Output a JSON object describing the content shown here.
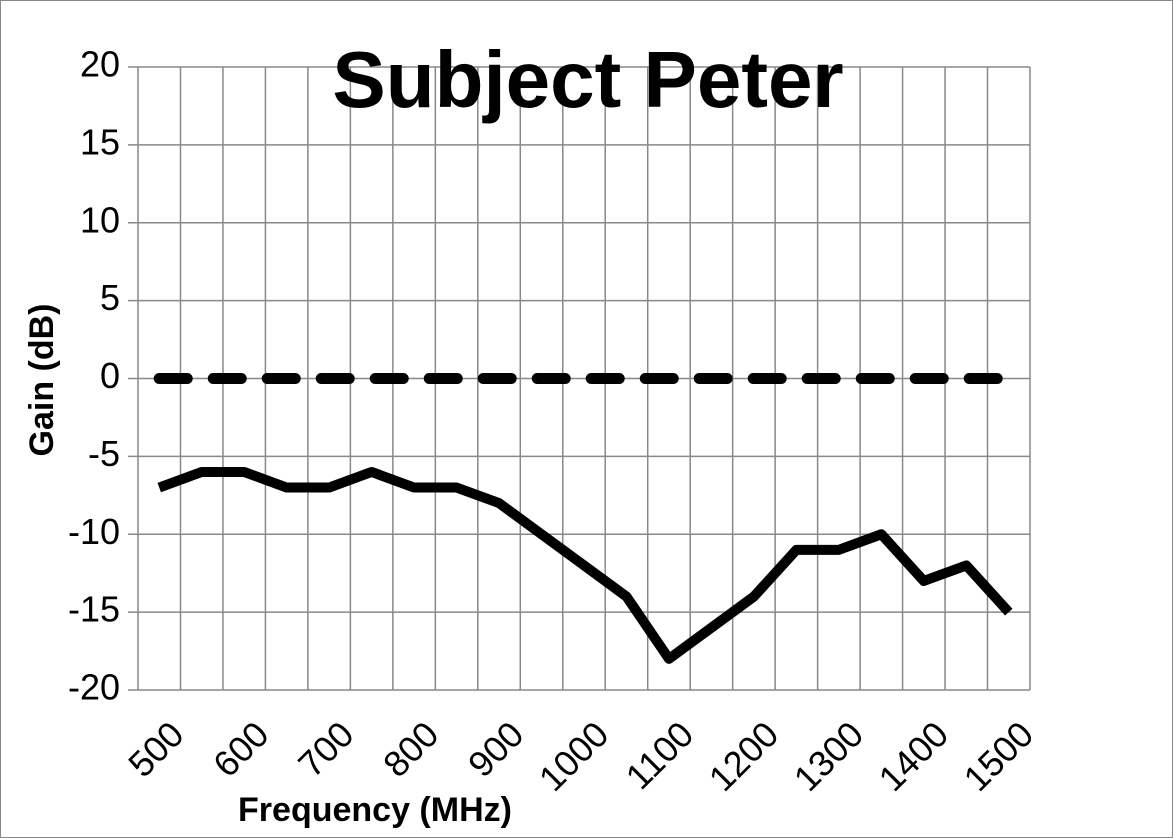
{
  "chart_data": {
    "type": "line",
    "title": "Subject Peter",
    "x_label": "Frequency (MHz)",
    "y_label": "Gain (dB)",
    "categories": [
      "500",
      null,
      "600",
      null,
      "700",
      null,
      "800",
      null,
      "900",
      null,
      "1000",
      null,
      "1100",
      null,
      "1200",
      null,
      "1300",
      null,
      "1400",
      null,
      "1500"
    ],
    "series": [
      {
        "color": "#000000",
        "dashed": false,
        "values": [
          -7,
          -6,
          -6,
          -7,
          -7,
          -6,
          -7,
          -7,
          -8,
          -10,
          -12,
          -14,
          -18,
          -16,
          -14,
          -11,
          -11,
          -10,
          -13,
          -12,
          -15
        ]
      },
      {
        "color": "#000000",
        "dashed": true,
        "values": [
          0,
          0,
          0,
          0,
          0,
          0,
          0,
          0,
          0,
          0,
          0,
          0,
          0,
          0,
          0,
          0,
          0,
          0,
          0,
          0,
          0
        ]
      }
    ],
    "ylim": [
      -20,
      20
    ],
    "yticks": [
      -20,
      -15,
      -10,
      -5,
      0,
      5,
      10,
      15,
      20
    ],
    "grid": true
  }
}
